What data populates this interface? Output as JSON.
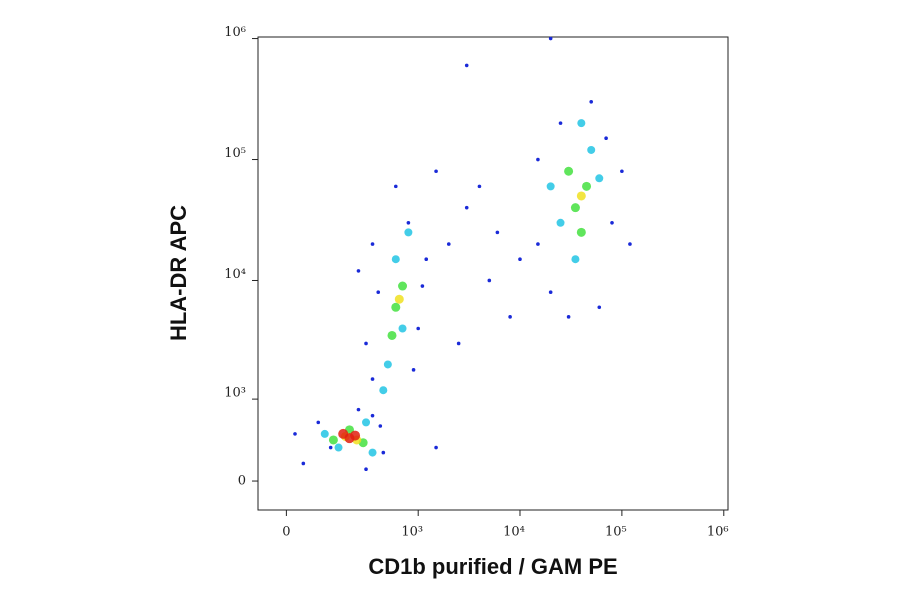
{
  "chart_data": {
    "type": "scatter",
    "x_label": "CD1b purified / GAM PE",
    "y_label": "HLA-DR APC",
    "xscale": "biexponential",
    "yscale": "biexponential",
    "xlim": [
      -70,
      1100000
    ],
    "ylim": [
      -255,
      1030000
    ],
    "xticks": [
      0,
      {
        "value": 1000,
        "label": "10³"
      },
      {
        "value": 10000,
        "label": "10⁴"
      },
      {
        "value": 100000,
        "label": "10⁵"
      },
      {
        "value": 1000000,
        "label": "10⁶"
      }
    ],
    "yticks": [
      0,
      {
        "value": 1000,
        "label": "10³"
      },
      {
        "value": 10000,
        "label": "10⁴"
      },
      {
        "value": 100000,
        "label": "10⁵"
      },
      {
        "value": 1000000,
        "label": "10⁶"
      }
    ],
    "series": [
      {
        "color": "#1a2ad8",
        "x": [
          40,
          80,
          350,
          450,
          120,
          300,
          20,
          420,
          250,
          350,
          900,
          300,
          1000,
          400,
          1100,
          350,
          800,
          600,
          1200,
          250,
          2000,
          3000,
          5000,
          2500,
          8000,
          4000,
          1500,
          6000,
          10000,
          15000,
          20000,
          60000,
          80000,
          100000,
          25000,
          50000,
          70000,
          15000,
          120000,
          30000,
          3000,
          20000,
          1500
        ],
        "y": [
          150,
          600,
          700,
          250,
          300,
          100,
          450,
          550,
          800,
          1500,
          1800,
          3000,
          4000,
          8000,
          9000,
          20000,
          30000,
          60000,
          15000,
          12000,
          20000,
          40000,
          10000,
          3000,
          5000,
          60000,
          80000,
          25000,
          15000,
          20000,
          8000,
          6000,
          30000,
          80000,
          200000,
          300000,
          150000,
          100000,
          20000,
          5000,
          600000,
          1000000,
          300
        ]
      },
      {
        "color": "#22c4e4",
        "x": [
          150,
          300,
          100,
          350,
          500,
          700,
          600,
          800,
          450,
          25000,
          50000,
          35000,
          60000,
          40000,
          20000
        ],
        "y": [
          300,
          600,
          450,
          250,
          2000,
          4000,
          15000,
          25000,
          1200,
          30000,
          120000,
          15000,
          70000,
          200000,
          60000
        ]
      },
      {
        "color": "#44e040",
        "x": [
          200,
          280,
          130,
          600,
          700,
          550,
          35000,
          45000,
          40000,
          30000
        ],
        "y": [
          500,
          350,
          380,
          6000,
          9000,
          3500,
          40000,
          60000,
          25000,
          80000
        ]
      },
      {
        "color": "#f0e020",
        "x": [
          180,
          240,
          650,
          40000
        ],
        "y": [
          420,
          380,
          7000,
          50000
        ]
      },
      {
        "color": "#e02010",
        "x": [
          200,
          170,
          230
        ],
        "y": [
          400,
          450,
          430
        ]
      }
    ]
  }
}
